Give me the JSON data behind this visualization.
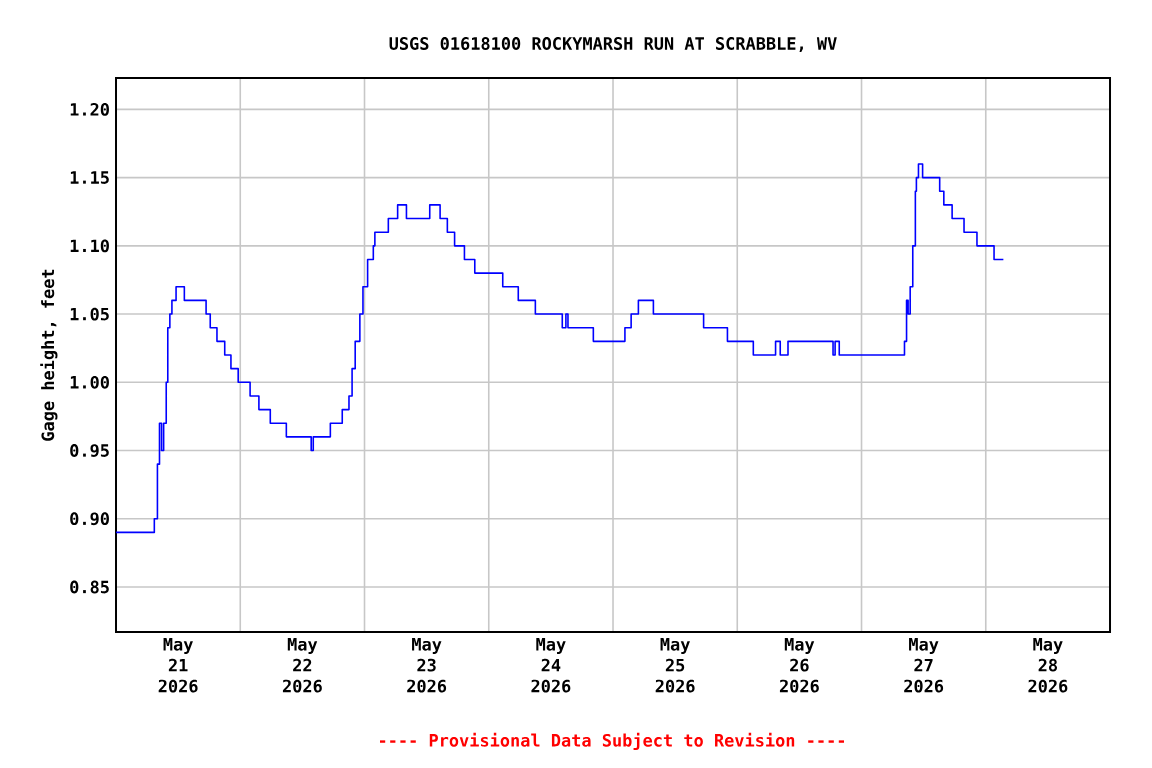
{
  "chart_data": {
    "type": "step",
    "title": "USGS 01618100 ROCKYMARSH RUN AT SCRABBLE, WV",
    "ylabel": "Gage height, feet",
    "annotations": [
      "---- Provisional Data Subject to Revision ----"
    ],
    "color": "#0000ff",
    "grid": true,
    "xlim": [
      "2026-05-21T00:00",
      "2026-05-29T00:00"
    ],
    "xticks": [
      {
        "value": "2026-05-21T00:00",
        "label": null
      },
      {
        "value": "2026-05-21T12:00",
        "label": "May 21 2026"
      },
      {
        "value": "2026-05-22T00:00",
        "label": null
      },
      {
        "value": "2026-05-22T12:00",
        "label": "May 22 2026"
      },
      {
        "value": "2026-05-23T00:00",
        "label": null
      },
      {
        "value": "2026-05-23T12:00",
        "label": "May 23 2026"
      },
      {
        "value": "2026-05-24T00:00",
        "label": null
      },
      {
        "value": "2026-05-24T12:00",
        "label": "May 24 2026"
      },
      {
        "value": "2026-05-25T00:00",
        "label": null
      },
      {
        "value": "2026-05-25T12:00",
        "label": "May 25 2026"
      },
      {
        "value": "2026-05-26T00:00",
        "label": null
      },
      {
        "value": "2026-05-26T12:00",
        "label": "May 26 2026"
      },
      {
        "value": "2026-05-27T00:00",
        "label": null
      },
      {
        "value": "2026-05-27T12:00",
        "label": "May 27 2026"
      },
      {
        "value": "2026-05-28T00:00",
        "label": null
      },
      {
        "value": "2026-05-28T12:00",
        "label": "May 28 2026"
      },
      {
        "value": "2026-05-29T00:00",
        "label": null
      }
    ],
    "ylim": [
      0.817,
      1.223
    ],
    "yticks": [
      0.85,
      {
        "value": 0.9,
        "label": "0.90"
      },
      0.95,
      {
        "value": 1.0,
        "label": "1.00"
      },
      1.05,
      {
        "value": 1.1,
        "label": "1.10"
      },
      1.15,
      {
        "value": 1.2,
        "label": "1.20"
      }
    ],
    "x": [
      "2026-05-21T00:00",
      "2026-05-21T07:24",
      "2026-05-21T08:00",
      "2026-05-21T08:24",
      "2026-05-21T08:48",
      "2026-05-21T09:12",
      "2026-05-21T09:42",
      "2026-05-21T10:00",
      "2026-05-21T10:24",
      "2026-05-21T10:48",
      "2026-05-21T11:36",
      "2026-05-21T13:12",
      "2026-05-21T17:24",
      "2026-05-21T18:12",
      "2026-05-21T19:30",
      "2026-05-21T21:00",
      "2026-05-21T22:12",
      "2026-05-21T23:36",
      "2026-05-22T01:54",
      "2026-05-22T03:36",
      "2026-05-22T05:48",
      "2026-05-22T08:54",
      "2026-05-22T13:42",
      "2026-05-22T14:06",
      "2026-05-22T17:24",
      "2026-05-22T19:42",
      "2026-05-22T21:00",
      "2026-05-22T21:36",
      "2026-05-22T22:12",
      "2026-05-22T23:06",
      "2026-05-22T23:42",
      "2026-05-23T00:36",
      "2026-05-23T01:42",
      "2026-05-23T02:00",
      "2026-05-23T04:36",
      "2026-05-23T06:24",
      "2026-05-23T08:06",
      "2026-05-23T12:36",
      "2026-05-23T14:36",
      "2026-05-23T16:00",
      "2026-05-23T17:24",
      "2026-05-23T19:18",
      "2026-05-23T21:18",
      "2026-05-24T02:42",
      "2026-05-24T05:42",
      "2026-05-24T09:00",
      "2026-05-24T14:12",
      "2026-05-24T14:54",
      "2026-05-24T15:18",
      "2026-05-24T20:12",
      "2026-05-25T02:18",
      "2026-05-25T03:30",
      "2026-05-25T04:54",
      "2026-05-25T07:48",
      "2026-05-25T17:30",
      "2026-05-25T22:06",
      "2026-05-26T03:06",
      "2026-05-26T07:24",
      "2026-05-26T08:18",
      "2026-05-26T09:48",
      "2026-05-26T18:30",
      "2026-05-26T18:54",
      "2026-05-26T19:42",
      "2026-05-27T08:18",
      "2026-05-27T08:42",
      "2026-05-27T09:00",
      "2026-05-27T09:24",
      "2026-05-27T09:54",
      "2026-05-27T10:24",
      "2026-05-27T10:36",
      "2026-05-27T11:00",
      "2026-05-27T11:48",
      "2026-05-27T15:06",
      "2026-05-27T15:54",
      "2026-05-27T17:30",
      "2026-05-27T19:48",
      "2026-05-27T22:18",
      "2026-05-28T01:36",
      "2026-05-28T03:24"
    ],
    "values": [
      0.89,
      0.9,
      0.94,
      0.97,
      0.95,
      0.97,
      1.0,
      1.04,
      1.05,
      1.06,
      1.07,
      1.06,
      1.05,
      1.04,
      1.03,
      1.02,
      1.01,
      1.0,
      0.99,
      0.98,
      0.97,
      0.96,
      0.95,
      0.96,
      0.97,
      0.98,
      0.99,
      1.01,
      1.03,
      1.05,
      1.07,
      1.09,
      1.1,
      1.11,
      1.12,
      1.13,
      1.12,
      1.13,
      1.12,
      1.11,
      1.1,
      1.09,
      1.08,
      1.07,
      1.06,
      1.05,
      1.04,
      1.05,
      1.04,
      1.03,
      1.04,
      1.05,
      1.06,
      1.05,
      1.04,
      1.03,
      1.02,
      1.03,
      1.02,
      1.03,
      1.02,
      1.03,
      1.02,
      1.03,
      1.06,
      1.05,
      1.07,
      1.1,
      1.14,
      1.15,
      1.16,
      1.15,
      1.14,
      1.13,
      1.12,
      1.11,
      1.1,
      1.09,
      1.09
    ]
  }
}
